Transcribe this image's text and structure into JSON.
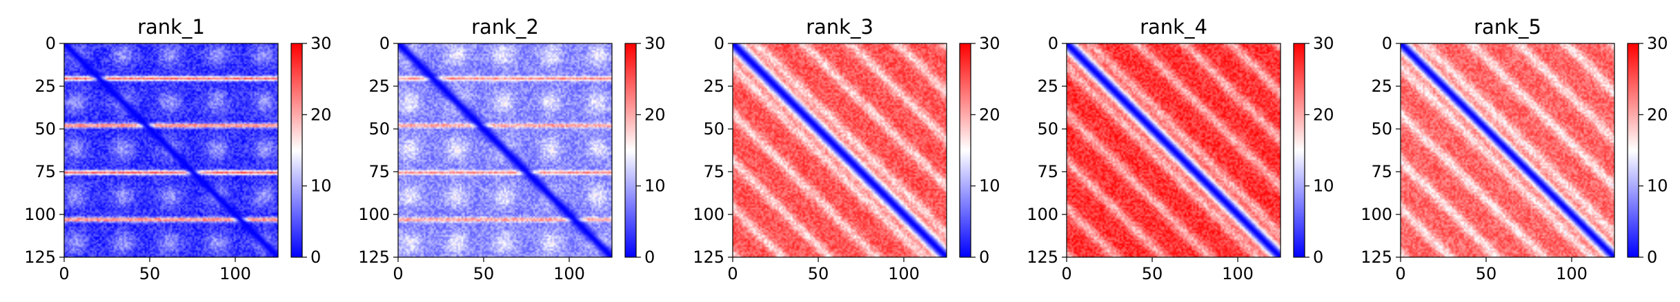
{
  "figure": {
    "background": "#ffffff"
  },
  "chart_data": [
    {
      "type": "heatmap",
      "title": "rank_1",
      "xlabel": "",
      "ylabel": "",
      "x_ticks": [
        0,
        50,
        100
      ],
      "y_ticks": [
        0,
        25,
        50,
        75,
        100,
        125
      ],
      "xlim": [
        0,
        125
      ],
      "ylim": [
        125,
        0
      ],
      "colorbar": {
        "vmin": 0,
        "vmax": 30,
        "ticks": [
          0,
          10,
          20,
          30
        ],
        "colormap": "bwr"
      },
      "matrix_size": 125,
      "pattern": {
        "diag_width": 2.5,
        "background": 3,
        "period": 27.5,
        "phase": 20,
        "red_bands": true,
        "band_value": 24
      }
    },
    {
      "type": "heatmap",
      "title": "rank_2",
      "xlabel": "",
      "ylabel": "",
      "x_ticks": [
        0,
        50,
        100
      ],
      "y_ticks": [
        0,
        25,
        50,
        75,
        100,
        125
      ],
      "xlim": [
        0,
        125
      ],
      "ylim": [
        125,
        0
      ],
      "colorbar": {
        "vmin": 0,
        "vmax": 30,
        "ticks": [
          0,
          10,
          20,
          30
        ],
        "colormap": "bwr"
      },
      "matrix_size": 125,
      "pattern": {
        "diag_width": 3,
        "background": 8,
        "period": 27.5,
        "phase": 20,
        "red_bands": true,
        "band_value": 22
      }
    },
    {
      "type": "heatmap",
      "title": "rank_3",
      "xlabel": "",
      "ylabel": "",
      "x_ticks": [
        0,
        50,
        100
      ],
      "y_ticks": [
        0,
        25,
        50,
        75,
        100,
        125
      ],
      "xlim": [
        0,
        125
      ],
      "ylim": [
        125,
        0
      ],
      "colorbar": {
        "vmin": 0,
        "vmax": 30,
        "ticks": [
          0,
          10,
          20,
          30
        ],
        "colormap": "bwr"
      },
      "matrix_size": 125,
      "pattern": {
        "diag_width": 4,
        "background": 25,
        "period": 27.5,
        "phase": 20,
        "red_bands": false,
        "band_value": 0
      }
    },
    {
      "type": "heatmap",
      "title": "rank_4",
      "xlabel": "",
      "ylabel": "",
      "x_ticks": [
        0,
        50,
        100
      ],
      "y_ticks": [
        0,
        25,
        50,
        75,
        100,
        125
      ],
      "xlim": [
        0,
        125
      ],
      "ylim": [
        125,
        0
      ],
      "colorbar": {
        "vmin": 0,
        "vmax": 30,
        "ticks": [
          0,
          10,
          20,
          30
        ],
        "colormap": "bwr"
      },
      "matrix_size": 125,
      "pattern": {
        "diag_width": 4,
        "background": 27,
        "period": 27.5,
        "phase": 20,
        "red_bands": false,
        "band_value": 0
      }
    },
    {
      "type": "heatmap",
      "title": "rank_5",
      "xlabel": "",
      "ylabel": "",
      "x_ticks": [
        0,
        50,
        100
      ],
      "y_ticks": [
        0,
        25,
        50,
        75,
        100,
        125
      ],
      "xlim": [
        0,
        125
      ],
      "ylim": [
        125,
        0
      ],
      "colorbar": {
        "vmin": 0,
        "vmax": 30,
        "ticks": [
          0,
          10,
          20,
          30
        ],
        "colormap": "bwr"
      },
      "matrix_size": 125,
      "pattern": {
        "diag_width": 3.5,
        "background": 24,
        "period": 27.5,
        "phase": 20,
        "red_bands": false,
        "band_value": 0
      }
    }
  ]
}
